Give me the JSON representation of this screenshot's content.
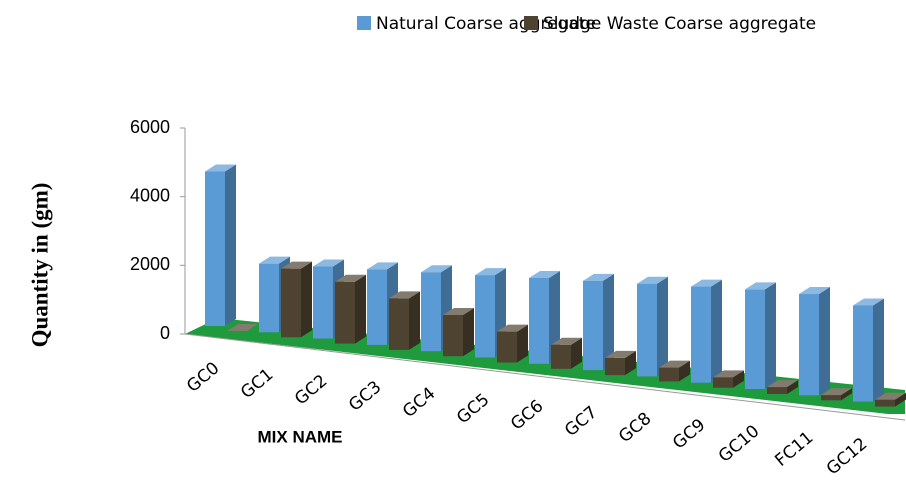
{
  "chart_data": {
    "type": "bar3d",
    "x_label": "MIX NAME",
    "y_label": "Quantity in (gm)",
    "categories": [
      "GC0",
      "GC1",
      "GC2",
      "GC3",
      "GC4",
      "GC5",
      "GC6",
      "GC7",
      "GC8",
      "GC9",
      "GC10",
      "FC11",
      "GC12"
    ],
    "series": [
      {
        "name": "Natural Coarse aggregate",
        "color": "#5b9bd5",
        "values": [
          4500,
          2000,
          2100,
          2200,
          2300,
          2400,
          2500,
          2600,
          2700,
          2800,
          2900,
          2950,
          2800
        ]
      },
      {
        "name": "Sludge Waste Coarse aggregate",
        "color": "#4d4330",
        "values": [
          0,
          2000,
          1800,
          1500,
          1200,
          900,
          700,
          500,
          400,
          300,
          200,
          150,
          200
        ]
      }
    ],
    "ylim": [
      0,
      6000
    ],
    "yticks": [
      0,
      2000,
      4000,
      6000
    ],
    "legend": "top"
  }
}
